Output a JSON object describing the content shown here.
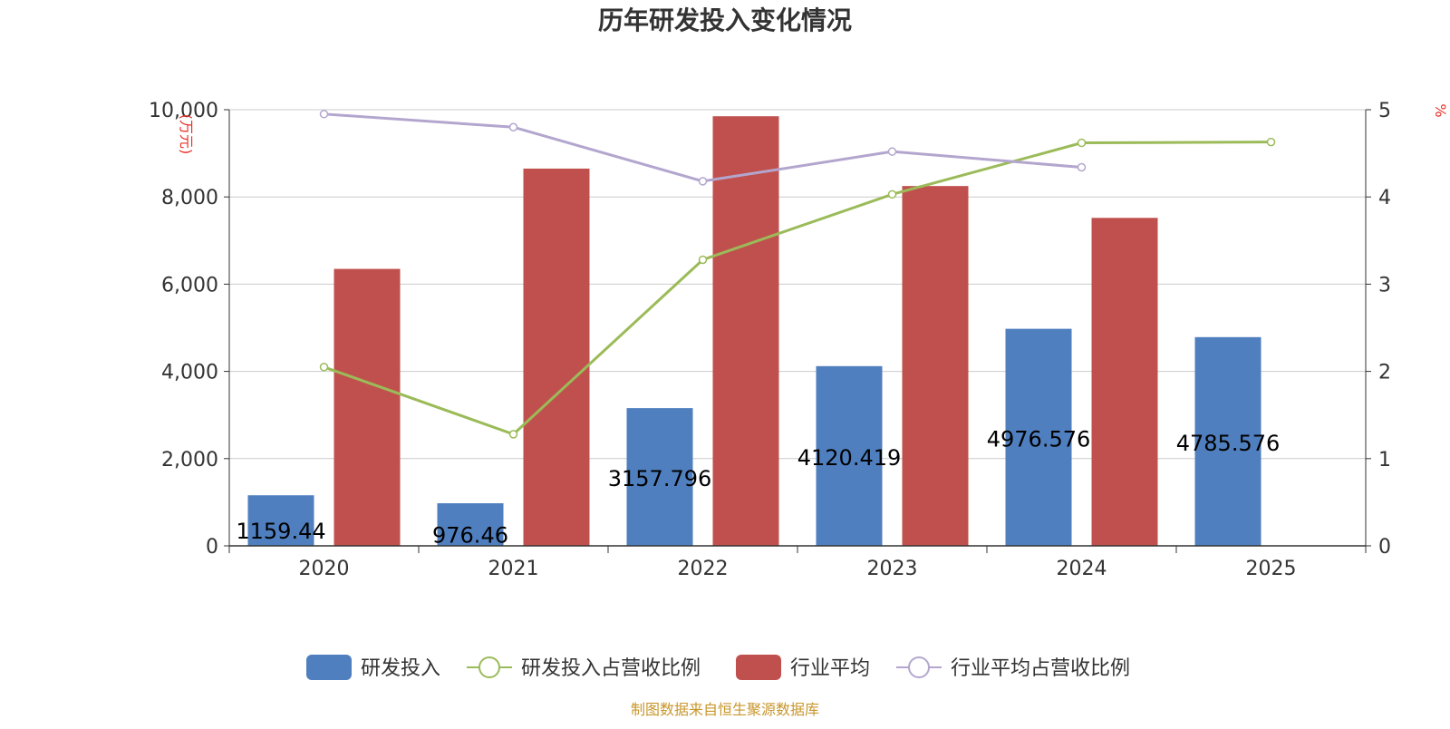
{
  "chart_data": {
    "type": "bar",
    "title": "历年研发投入变化情况",
    "categories": [
      "2020",
      "2021",
      "2022",
      "2023",
      "2024",
      "2025"
    ],
    "y_left": {
      "unit": "(万元)",
      "ylim": [
        0,
        10000
      ],
      "ticks": [
        "0",
        "2,000",
        "4,000",
        "6,000",
        "8,000",
        "10,000"
      ]
    },
    "y_right": {
      "unit": "%",
      "ylim": [
        0,
        5
      ],
      "ticks": [
        "0",
        "1",
        "2",
        "3",
        "4",
        "5"
      ]
    },
    "series": [
      {
        "name": "研发投入",
        "kind": "bar",
        "axis": "left",
        "color": "#4f7fbf",
        "values": [
          1159.44,
          976.46,
          3157.796,
          4120.419,
          4976.576,
          4785.576
        ],
        "labels": [
          "1159.44",
          "976.46",
          "3157.796",
          "4120.419",
          "4976.576",
          "4785.576"
        ]
      },
      {
        "name": "研发投入占营收比例",
        "kind": "line",
        "axis": "right",
        "color": "#9bbb59",
        "values": [
          2.05,
          1.28,
          3.28,
          4.03,
          4.62,
          4.63
        ]
      },
      {
        "name": "行业平均",
        "kind": "bar",
        "axis": "left",
        "color": "#c0504d",
        "values": [
          6350,
          8650,
          9850,
          8250,
          7520,
          null
        ]
      },
      {
        "name": "行业平均占营收比例",
        "kind": "line",
        "axis": "right",
        "color": "#b3a6ce",
        "values": [
          4.95,
          4.8,
          4.18,
          4.52,
          4.34,
          null
        ]
      }
    ],
    "grid": true,
    "legend_position": "bottom"
  },
  "source": "制图数据来自恒生聚源数据库"
}
